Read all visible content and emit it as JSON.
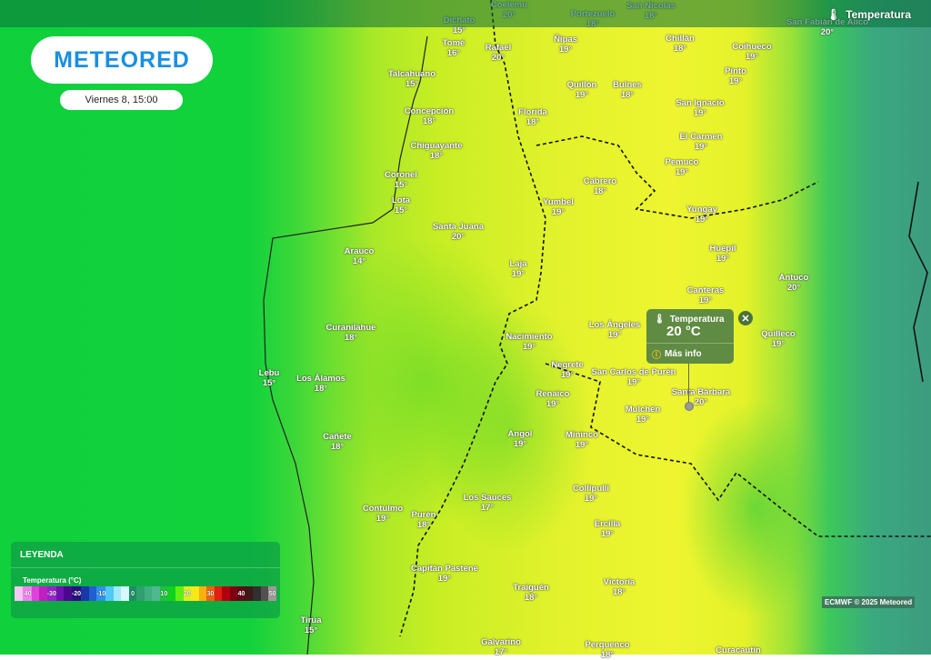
{
  "header": {
    "logo": "METEORED",
    "datetime": "Viernes 8, 15:00",
    "layer_label": "Temperatura",
    "layer_icon": "thermometer-icon"
  },
  "cities": [
    {
      "name": "Coelemu",
      "temp": "20°"
    },
    {
      "name": "Portezuelo",
      "temp": "18°"
    },
    {
      "name": "San Nicolás",
      "temp": "18°"
    },
    {
      "name": "Dichato",
      "temp": "15°"
    },
    {
      "name": "San Fabián de Alico",
      "temp": "20°"
    },
    {
      "name": "Tomé",
      "temp": "16°"
    },
    {
      "name": "Rafael",
      "temp": "20°"
    },
    {
      "name": "Ñipas",
      "temp": "19°"
    },
    {
      "name": "Chillán",
      "temp": "18°"
    },
    {
      "name": "Coihueco",
      "temp": "19°"
    },
    {
      "name": "Talcahuano",
      "temp": "15°"
    },
    {
      "name": "Pinto",
      "temp": "19°"
    },
    {
      "name": "Quillón",
      "temp": "19°"
    },
    {
      "name": "Bulnes",
      "temp": "18°"
    },
    {
      "name": "San Ignacio",
      "temp": "19°"
    },
    {
      "name": "Concepción",
      "temp": "18°"
    },
    {
      "name": "Florida",
      "temp": "18°"
    },
    {
      "name": "El Carmen",
      "temp": "19°"
    },
    {
      "name": "Chiguayante",
      "temp": "18°"
    },
    {
      "name": "Pemuco",
      "temp": "19°"
    },
    {
      "name": "Coronel",
      "temp": "15°"
    },
    {
      "name": "Cabrero",
      "temp": "18°"
    },
    {
      "name": "Yumbel",
      "temp": "19°"
    },
    {
      "name": "Lota",
      "temp": "15°"
    },
    {
      "name": "Yungay",
      "temp": "19°"
    },
    {
      "name": "Santa Juana",
      "temp": "20°"
    },
    {
      "name": "Arauco",
      "temp": "14°"
    },
    {
      "name": "Huépil",
      "temp": "19°"
    },
    {
      "name": "Laja",
      "temp": "19°"
    },
    {
      "name": "Antuco",
      "temp": "20°"
    },
    {
      "name": "Canteras",
      "temp": "19°"
    },
    {
      "name": "Quilleco",
      "temp": "19°"
    },
    {
      "name": "Los Ángeles",
      "temp": "19°"
    },
    {
      "name": "Curanilahue",
      "temp": "18°"
    },
    {
      "name": "Nacimiento",
      "temp": "19°"
    },
    {
      "name": "Negrete",
      "temp": "19°"
    },
    {
      "name": "San Carlos de Purén",
      "temp": "19°"
    },
    {
      "name": "Lebu",
      "temp": "15°"
    },
    {
      "name": "Los Álamos",
      "temp": "18°"
    },
    {
      "name": "Santa Bárbara",
      "temp": "20°"
    },
    {
      "name": "Renaico",
      "temp": "19°"
    },
    {
      "name": "Mulchén",
      "temp": "19°"
    },
    {
      "name": "Cañete",
      "temp": "18°"
    },
    {
      "name": "Angol",
      "temp": "19°"
    },
    {
      "name": "Mininco",
      "temp": "19°"
    },
    {
      "name": "Collipulli",
      "temp": "19°"
    },
    {
      "name": "Los Sauces",
      "temp": "17°"
    },
    {
      "name": "Contulmo",
      "temp": "19°"
    },
    {
      "name": "Purén",
      "temp": "18°"
    },
    {
      "name": "Ercilla",
      "temp": "19°"
    },
    {
      "name": "Capitán Pastene",
      "temp": "19°"
    },
    {
      "name": "Traiguén",
      "temp": "18°"
    },
    {
      "name": "Victoria",
      "temp": "18°"
    },
    {
      "name": "Tirúa",
      "temp": "15°"
    },
    {
      "name": "Galvarino",
      "temp": "17°"
    },
    {
      "name": "Perquenco",
      "temp": "18°"
    },
    {
      "name": "Curacautín",
      "temp": ""
    }
  ],
  "popup": {
    "title": "Temperatura",
    "value": "20 °C",
    "more_label": "Más info",
    "close_icon": "close-icon"
  },
  "legend": {
    "title": "LEYENDA",
    "subtitle": "Temperatura (°C)",
    "scale": [
      {
        "label": "",
        "color": "#f4c8f4"
      },
      {
        "label": "-40",
        "color": "#f080f0"
      },
      {
        "label": "",
        "color": "#e040e0"
      },
      {
        "label": "",
        "color": "#c020c0"
      },
      {
        "label": "-30",
        "color": "#9a20d0"
      },
      {
        "label": "",
        "color": "#7010b0"
      },
      {
        "label": "",
        "color": "#4a0890"
      },
      {
        "label": "-20",
        "color": "#281080"
      },
      {
        "label": "",
        "color": "#1838a8"
      },
      {
        "label": "",
        "color": "#2060d0"
      },
      {
        "label": "-10",
        "color": "#3090f0"
      },
      {
        "label": "",
        "color": "#50c8f8"
      },
      {
        "label": "",
        "color": "#a0e8fc"
      },
      {
        "label": "",
        "color": "#d8f8fc"
      },
      {
        "label": "0",
        "color": "#1a9060"
      },
      {
        "label": "",
        "color": "#30a070"
      },
      {
        "label": "",
        "color": "#40b080"
      },
      {
        "label": "",
        "color": "#50b890"
      },
      {
        "label": "10",
        "color": "#20c040"
      },
      {
        "label": "",
        "color": "#10d020"
      },
      {
        "label": "",
        "color": "#60f010"
      },
      {
        "label": "20",
        "color": "#d8f020"
      },
      {
        "label": "",
        "color": "#f8e818"
      },
      {
        "label": "",
        "color": "#f8b010"
      },
      {
        "label": "30",
        "color": "#f06010"
      },
      {
        "label": "",
        "color": "#e02010"
      },
      {
        "label": "",
        "color": "#b00010"
      },
      {
        "label": "",
        "color": "#800010"
      },
      {
        "label": "40",
        "color": "#600818"
      },
      {
        "label": "",
        "color": "#401818"
      },
      {
        "label": "",
        "color": "#303030"
      },
      {
        "label": "",
        "color": "#555050"
      },
      {
        "label": "50",
        "color": "#a09898"
      }
    ]
  },
  "credit": "ECMWF © 2025 Meteored"
}
